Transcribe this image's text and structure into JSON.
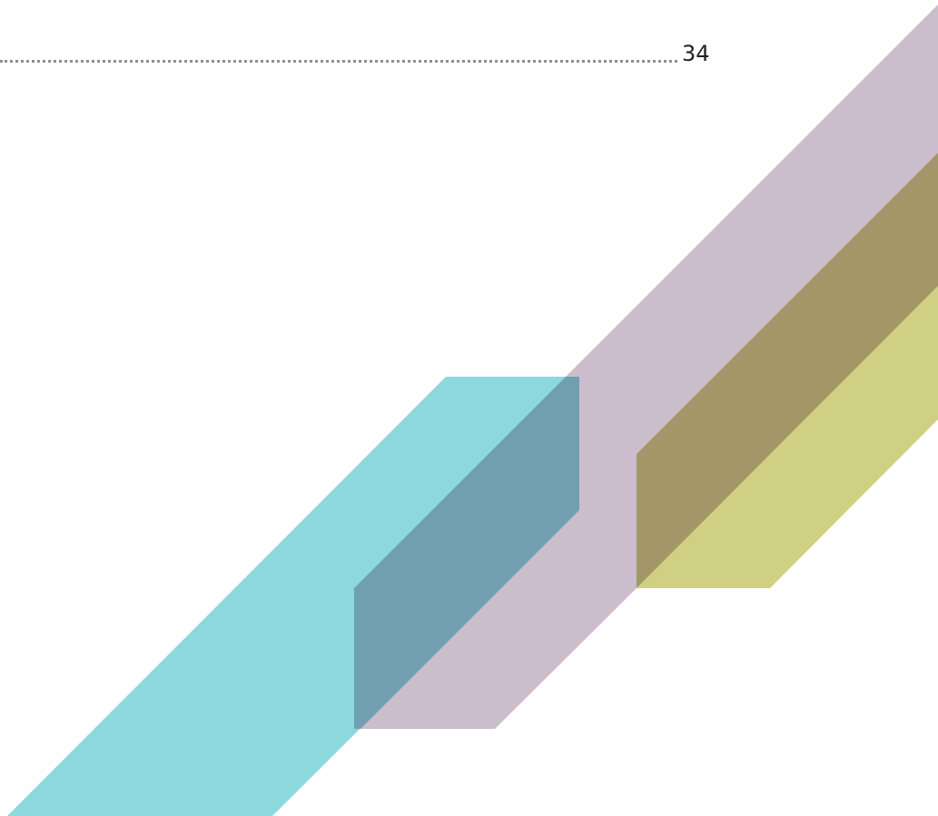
{
  "page": {
    "number": "34"
  },
  "decoration": {
    "colors": {
      "leader_dots": "#8f8f8f",
      "teal_band": "#8dd8de",
      "mauve_band": "#cbbdcc",
      "olive_band": "#a49767",
      "yellow_band": "#cfd082",
      "teal_mauve_overlap": "#70a0b0"
    }
  }
}
